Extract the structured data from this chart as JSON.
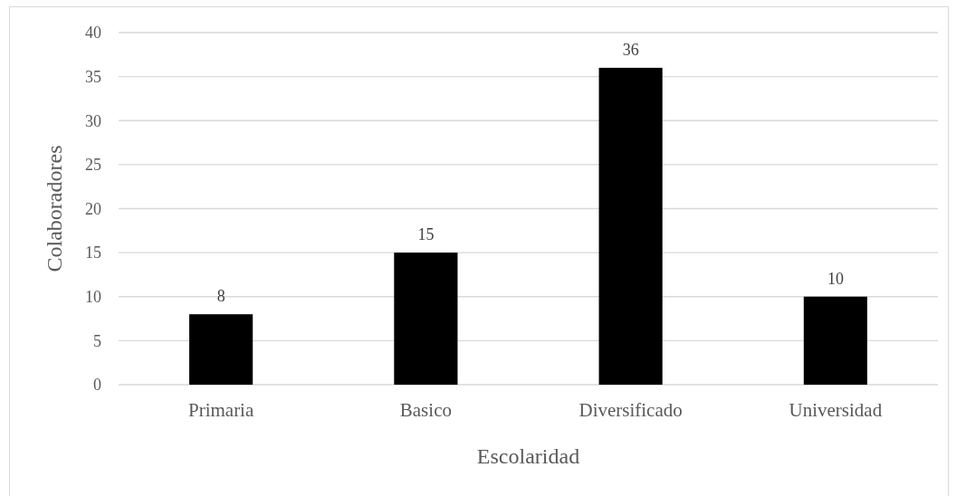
{
  "chart_data": {
    "type": "bar",
    "xlabel": "Escolaridad",
    "ylabel": "Colaboradores",
    "categories": [
      "Primaria",
      "Basico",
      "Diversificado",
      "Universidad"
    ],
    "values": [
      8,
      15,
      36,
      10
    ],
    "color": "#000000",
    "ylim": [
      0,
      40
    ],
    "yticks": [
      0,
      5,
      10,
      15,
      20,
      25,
      30,
      35,
      40
    ],
    "grid": "y",
    "data_labels": true
  }
}
